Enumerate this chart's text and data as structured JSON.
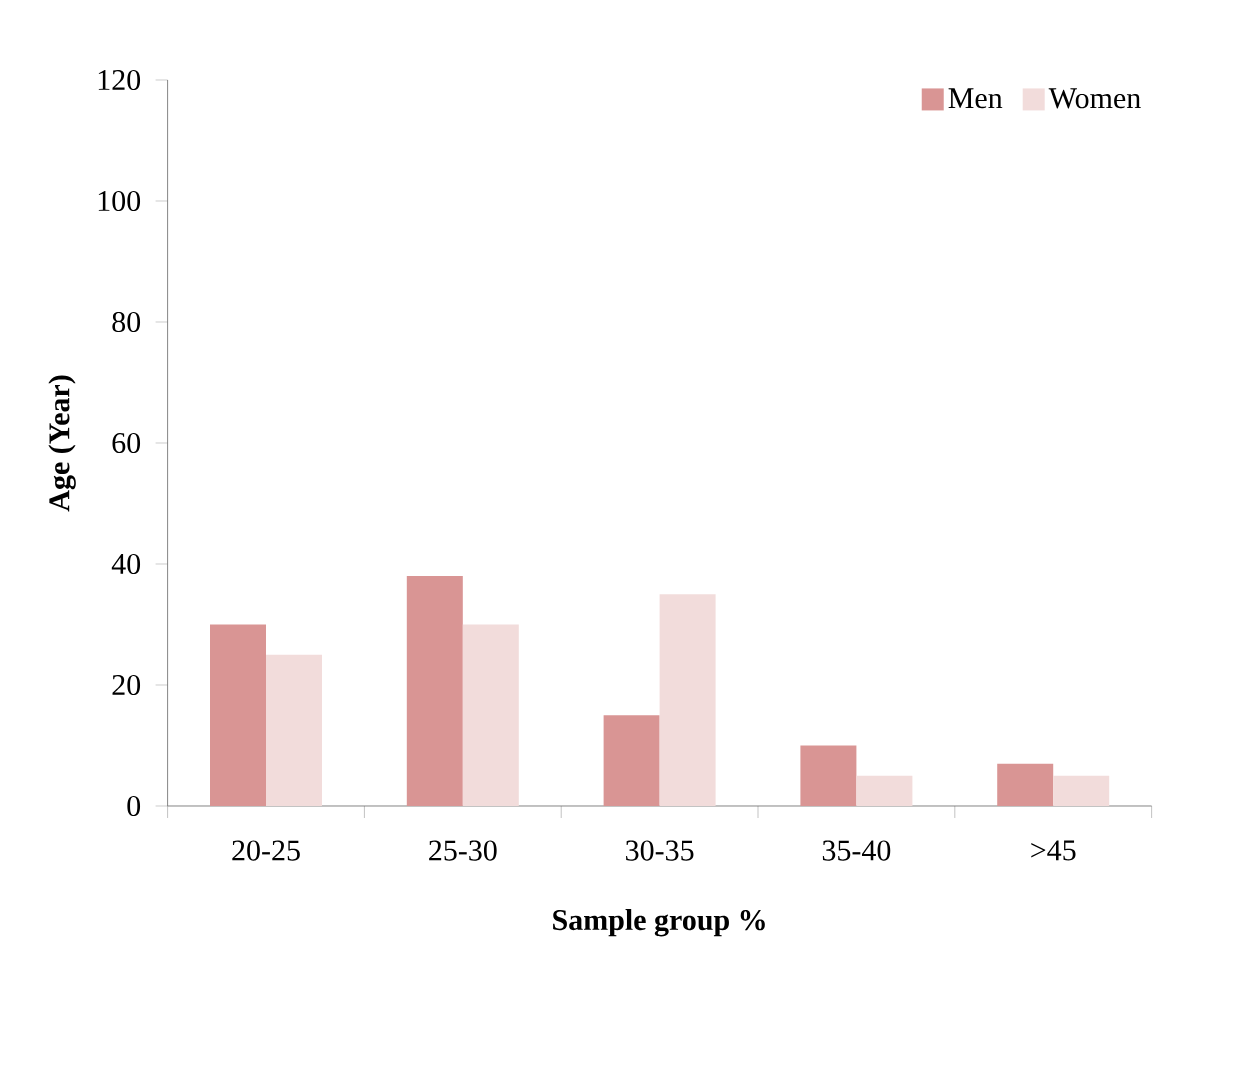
{
  "chart_data": {
    "type": "bar",
    "xlabel": "Sample group %",
    "ylabel": "Age (Year)",
    "categories": [
      "20-25",
      "25-30",
      "30-35",
      "35-40",
      ">45"
    ],
    "series": [
      {
        "name": "Men",
        "color": "#d99594",
        "values": [
          30,
          38,
          15,
          10,
          7
        ]
      },
      {
        "name": "Women",
        "color": "#f2dcdb",
        "values": [
          25,
          30,
          35,
          5,
          5
        ]
      }
    ],
    "ylim": [
      0,
      120
    ],
    "yticks": [
      0,
      20,
      40,
      60,
      80,
      100,
      120
    ],
    "legend": "top right",
    "grid": false
  }
}
